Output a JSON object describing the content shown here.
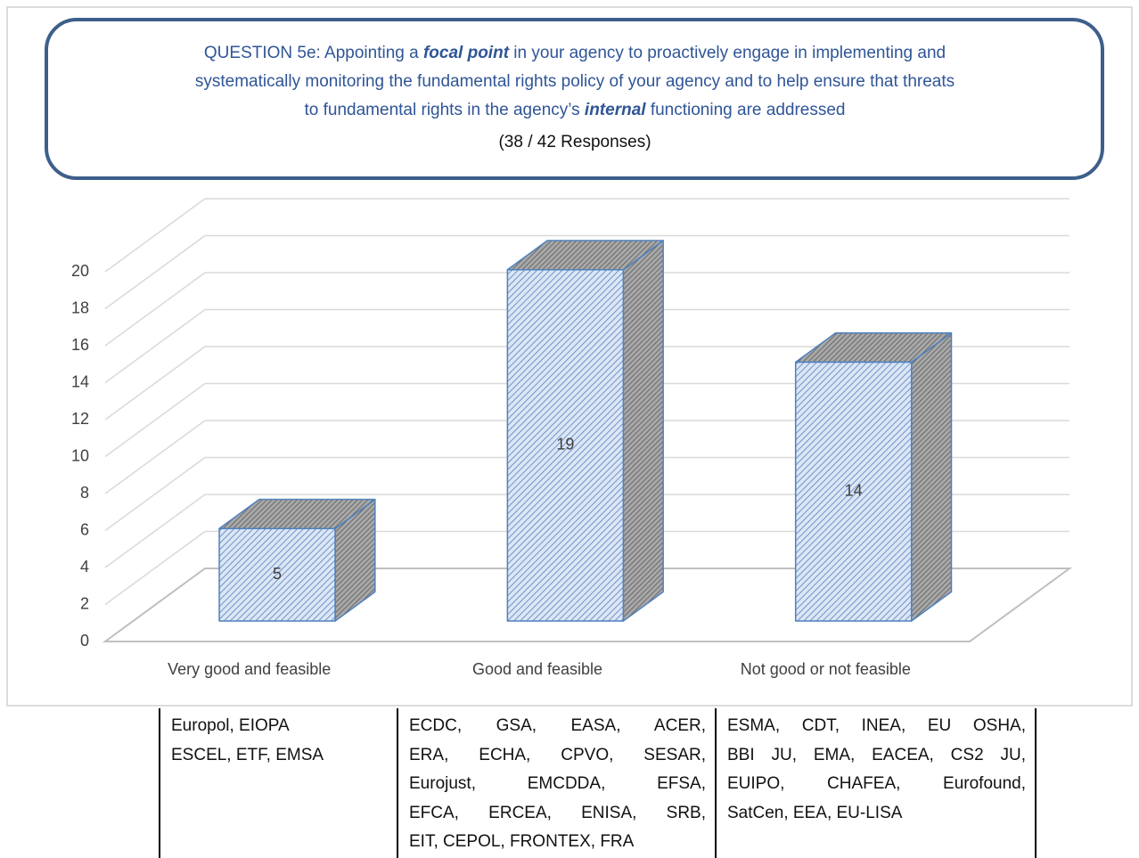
{
  "chart_data": {
    "type": "bar3d",
    "title": [
      [
        "QUESTION 5e: Appointing a ",
        "focal point",
        " in your agency to proactively engage in implementing and"
      ],
      [
        "systematically monitoring the fundamental rights policy of your agency and to help ensure that threats"
      ],
      [
        "to fundamental rights in the agency’s ",
        "internal",
        " functioning are addressed"
      ]
    ],
    "subtitle": "(38 / 42 Responses)",
    "categories": [
      "Very good and feasible",
      "Good and feasible",
      "Not good or not feasible"
    ],
    "values": [
      5,
      19,
      14
    ],
    "ylim": [
      0,
      20
    ],
    "yticks": [
      0,
      2,
      4,
      6,
      8,
      10,
      12,
      14,
      16,
      18,
      20
    ],
    "grid": true
  },
  "table": {
    "rows": [
      [
        [
          "Europol, EIOPA",
          "ESCEL, ETF, EMSA"
        ],
        [
          "ECDC, GSA, EASA, ACER,",
          "ERA, ECHA, CPVO, SESAR,",
          "Eurojust, EMCDDA, EFSA,",
          "EFCA, ERCEA, ENISA, SRB,",
          "EIT, CEPOL, FRONTEX, FRA"
        ],
        [
          "ESMA, CDT, INEA, EU OSHA,",
          "BBI JU, EMA, EACEA, CS2 JU,",
          "EUIPO, CHAFEA, Eurofound,",
          "SatCen, EEA, EU-LISA"
        ]
      ]
    ]
  }
}
